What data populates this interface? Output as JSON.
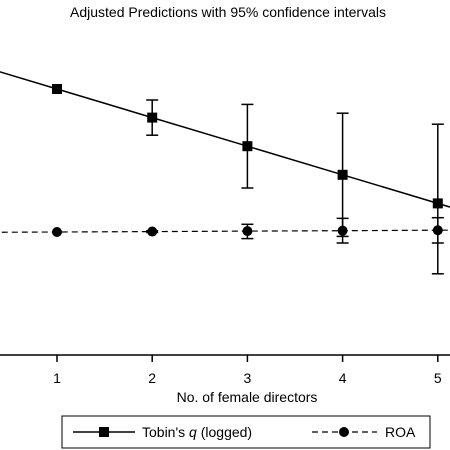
{
  "chart_data": {
    "type": "line",
    "title": "Adjusted Predictions with 95% confidence intervals",
    "xlabel": "No. of female directors",
    "ylabel": "",
    "x": [
      1,
      2,
      3,
      4,
      5
    ],
    "xlim": [
      0,
      5.15
    ],
    "ylim": [
      -0.95,
      0.9
    ],
    "x_ticks": [
      "1",
      "2",
      "3",
      "4",
      "5"
    ],
    "grid": false,
    "legend_position": "bottom",
    "series": [
      {
        "name_prefix": "Tobin's ",
        "name_italic": "q",
        "name_suffix": " (logged)",
        "marker": "square",
        "line_style": "solid",
        "values": [
          0.5,
          0.37,
          0.24,
          0.11,
          -0.02
        ],
        "ci_lower": [
          0.5,
          0.29,
          0.05,
          -0.17,
          -0.34
        ],
        "ci_upper": [
          0.5,
          0.45,
          0.43,
          0.39,
          0.34
        ]
      },
      {
        "name": "ROA",
        "marker": "circle",
        "line_style": "dashed",
        "values": [
          -0.15,
          -0.148,
          -0.146,
          -0.144,
          -0.142
        ],
        "ci_lower": [
          -0.15,
          -0.152,
          -0.18,
          -0.2,
          -0.2
        ],
        "ci_upper": [
          -0.15,
          -0.144,
          -0.115,
          -0.088,
          -0.085
        ]
      }
    ]
  }
}
